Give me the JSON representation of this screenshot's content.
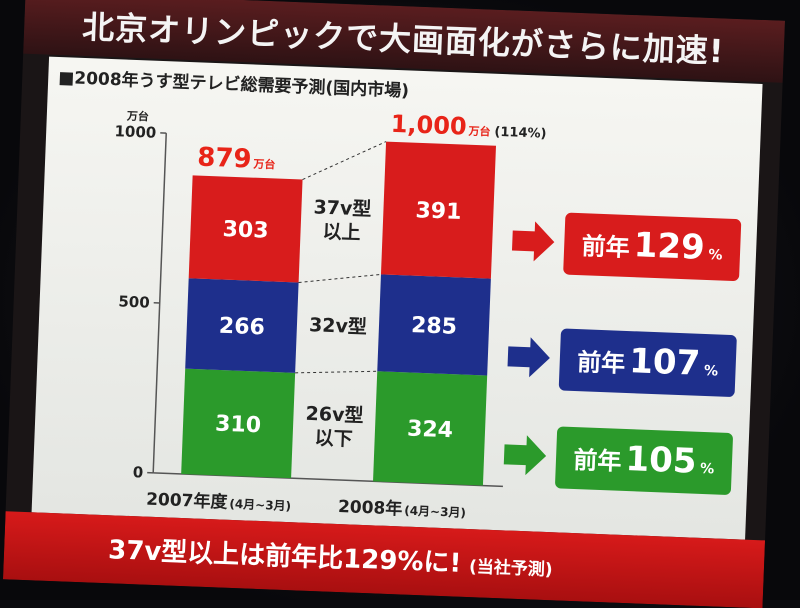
{
  "slide": {
    "title": "北京オリンピックで大画面化がさらに加速!",
    "conclusion": "37v型以上は前年比129%に!",
    "conclusion_note": "(当社予測)",
    "source": "(当社予測)"
  },
  "chart_data": {
    "type": "stacked-bar",
    "title": "■2008年うす型テレビ総需要予測(国内市場)",
    "y_unit": "万台",
    "ylim": [
      0,
      1000
    ],
    "yticks": [
      "0",
      "500",
      "1000"
    ],
    "categories": [
      {
        "label": "2007年度",
        "sub": "(4月~3月)",
        "total": "879",
        "total_unit": "万台",
        "total_extra": ""
      },
      {
        "label": "2008年",
        "sub": "(4月~3月)",
        "total": "1,000",
        "total_unit": "万台",
        "total_extra": "(114%)"
      }
    ],
    "series": [
      {
        "name": "26v型 以下",
        "name_lines": [
          "26v型",
          "以下"
        ],
        "color": "#2b9a2b",
        "values": [
          310,
          324
        ]
      },
      {
        "name": "32v型",
        "name_lines": [
          "32v型"
        ],
        "color": "#1e2f8c",
        "values": [
          266,
          285
        ]
      },
      {
        "name": "37v型 以上",
        "name_lines": [
          "37v型",
          "以上"
        ],
        "color": "#d81c1c",
        "values": [
          303,
          391
        ]
      }
    ],
    "growth": [
      {
        "prefix": "前年",
        "value": "129",
        "unit": "%",
        "color": "#d81c1c"
      },
      {
        "prefix": "前年",
        "value": "107",
        "unit": "%",
        "color": "#1e2f8c"
      },
      {
        "prefix": "前年",
        "value": "105",
        "unit": "%",
        "color": "#2b9a2b"
      }
    ]
  }
}
